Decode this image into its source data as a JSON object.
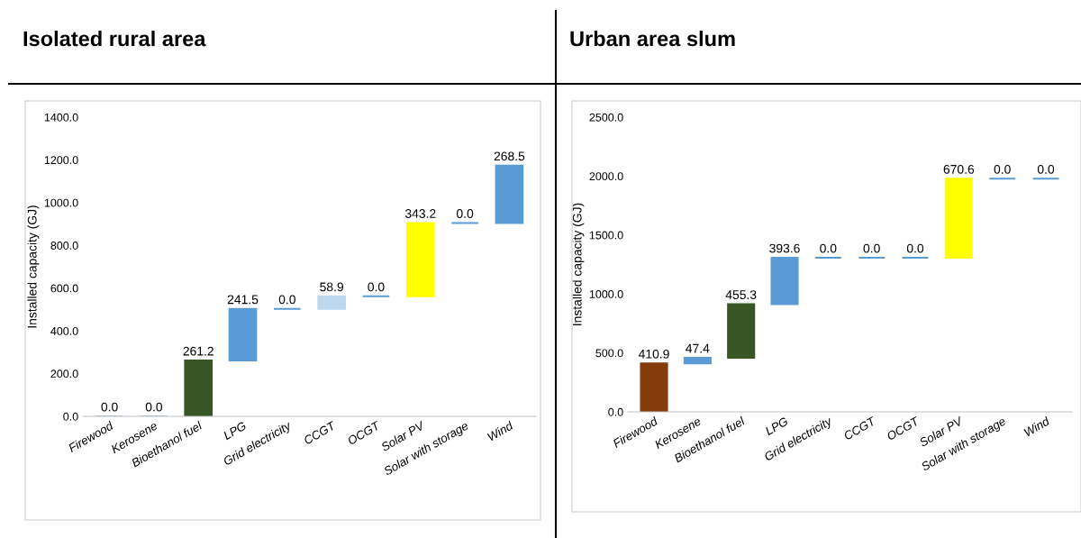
{
  "chart_data": [
    {
      "type": "bar",
      "title": "Isolated rural area",
      "ylabel": "Installed capacity (GJ)",
      "categories": [
        "Firewood",
        "Kerosene",
        "Bioethanol fuel",
        "LPG",
        "Grid electricity",
        "CCGT",
        "OCGT",
        "Solar PV",
        "Solar with storage",
        "Wind"
      ],
      "values": [
        0.0,
        0.0,
        261.2,
        241.5,
        0.0,
        58.9,
        0.0,
        343.2,
        0.0,
        268.5
      ],
      "base": [
        0,
        0,
        0,
        261.2,
        502.7,
        502.7,
        561.6,
        561.6,
        904.8,
        904.8
      ],
      "value_labels": [
        "0.0",
        "0.0",
        "261.2",
        "241.5",
        "0.0",
        "58.9",
        "0.0",
        "343.2",
        "0.0",
        "268.5"
      ],
      "colors": [
        "#9dc3e6",
        "#9dc3e6",
        "#375623",
        "#5b9bd5",
        "#5b9bd5",
        "#bdd7ee",
        "#5b9bd5",
        "#ffff00",
        "#5b9bd5",
        "#5b9bd5"
      ],
      "ylim": [
        0,
        1400
      ],
      "yticks": [
        {
          "value": 0,
          "label": "0.0"
        },
        {
          "value": 200,
          "label": "200.0"
        },
        {
          "value": 400,
          "label": "400.0"
        },
        {
          "value": 600,
          "label": "600.0"
        },
        {
          "value": 800,
          "label": "800.0"
        },
        {
          "value": 1000,
          "label": "1000.0"
        },
        {
          "value": 1200,
          "label": "1200.0"
        },
        {
          "value": 1400,
          "label": "1400.0"
        }
      ],
      "grid": false,
      "legend": false
    },
    {
      "type": "bar",
      "title": "Urban area slum",
      "ylabel": "Installed capacity (GJ)",
      "categories": [
        "Firewood",
        "Kerosene",
        "Bioethanol fuel",
        "LPG",
        "Grid electricity",
        "CCGT",
        "OCGT",
        "Solar PV",
        "Solar with storage",
        "Wind"
      ],
      "values": [
        410.9,
        47.4,
        455.3,
        393.6,
        0.0,
        0.0,
        0.0,
        670.6,
        0.0,
        0.0
      ],
      "base": [
        0,
        410.9,
        458.3,
        913.6,
        1307.2,
        1307.2,
        1307.2,
        1307.2,
        1977.8,
        1977.8
      ],
      "value_labels": [
        "410.9",
        "47.4",
        "455.3",
        "393.6",
        "0.0",
        "0.0",
        "0.0",
        "670.6",
        "0.0",
        "0.0"
      ],
      "colors": [
        "#843c0c",
        "#5b9bd5",
        "#375623",
        "#5b9bd5",
        "#5b9bd5",
        "#5b9bd5",
        "#5b9bd5",
        "#ffff00",
        "#5b9bd5",
        "#5b9bd5"
      ],
      "ylim": [
        0,
        2500
      ],
      "yticks": [
        {
          "value": 0,
          "label": "0.0"
        },
        {
          "value": 500,
          "label": "500.0"
        },
        {
          "value": 1000,
          "label": "1000.0"
        },
        {
          "value": 1500,
          "label": "1500.0"
        },
        {
          "value": 2000,
          "label": "2000.0"
        },
        {
          "value": 2500,
          "label": "2500.0"
        }
      ],
      "grid": false,
      "legend": false
    }
  ]
}
